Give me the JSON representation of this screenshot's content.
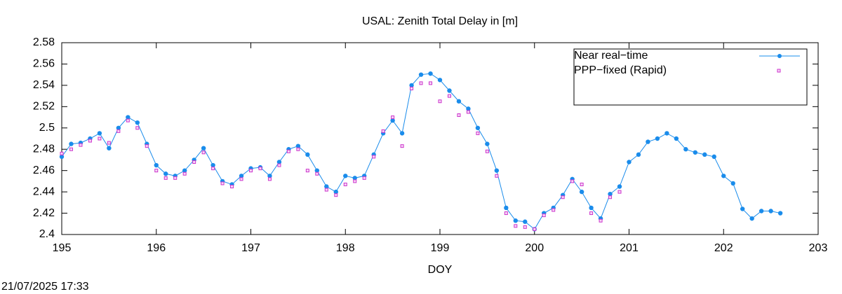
{
  "chart_data": {
    "type": "line",
    "title": "USAL: Zenith Total Delay in [m]",
    "xlabel": "DOY",
    "timestamp": "21/07/2025 17:33",
    "xlim": [
      195,
      203
    ],
    "xticks": [
      195,
      196,
      197,
      198,
      199,
      200,
      201,
      202,
      203
    ],
    "ylim": [
      2.4,
      2.58
    ],
    "yticks": [
      2.4,
      2.42,
      2.44,
      2.46,
      2.48,
      2.5,
      2.52,
      2.54,
      2.56,
      2.58
    ],
    "legend": "top-right",
    "series": [
      {
        "name": "Near real−time",
        "color": "#1a8ceb",
        "marker": "circle",
        "x": [
          195.0,
          195.1,
          195.2,
          195.3,
          195.4,
          195.5,
          195.6,
          195.7,
          195.8,
          195.9,
          196.0,
          196.1,
          196.2,
          196.3,
          196.4,
          196.5,
          196.6,
          196.7,
          196.8,
          196.9,
          197.0,
          197.1,
          197.2,
          197.3,
          197.4,
          197.5,
          197.6,
          197.7,
          197.8,
          197.9,
          198.0,
          198.1,
          198.2,
          198.3,
          198.4,
          198.5,
          198.6,
          198.7,
          198.8,
          198.9,
          199.0,
          199.1,
          199.2,
          199.3,
          199.4,
          199.5,
          199.6,
          199.7,
          199.8,
          199.9,
          200.0,
          200.1,
          200.2,
          200.3,
          200.4,
          200.5,
          200.6,
          200.7,
          200.8,
          200.9,
          201.0,
          201.1,
          201.2,
          201.3,
          201.4,
          201.5,
          201.6,
          201.7,
          201.8,
          201.9,
          202.0,
          202.1,
          202.2,
          202.3,
          202.4,
          202.5,
          202.6
        ],
        "values": [
          2.473,
          2.485,
          2.486,
          2.49,
          2.495,
          2.481,
          2.5,
          2.51,
          2.505,
          2.485,
          2.465,
          2.457,
          2.455,
          2.46,
          2.47,
          2.481,
          2.465,
          2.45,
          2.447,
          2.455,
          2.462,
          2.463,
          2.455,
          2.468,
          2.48,
          2.483,
          2.475,
          2.46,
          2.445,
          2.44,
          2.455,
          2.453,
          2.455,
          2.475,
          2.495,
          2.507,
          2.495,
          2.54,
          2.55,
          2.551,
          2.545,
          2.535,
          2.525,
          2.518,
          2.5,
          2.485,
          2.46,
          2.425,
          2.413,
          2.412,
          2.405,
          2.42,
          2.425,
          2.437,
          2.452,
          2.44,
          2.425,
          2.415,
          2.438,
          2.445,
          2.468,
          2.475,
          2.487,
          2.49,
          2.495,
          2.49,
          2.48,
          2.477,
          2.475,
          2.473,
          2.455,
          2.448,
          2.424,
          2.415,
          2.422,
          2.422,
          2.42
        ]
      },
      {
        "name": "PPP−fixed (Rapid)",
        "color": "#cc33cc",
        "marker": "square",
        "x": [
          195.0,
          195.1,
          195.2,
          195.3,
          195.4,
          195.5,
          195.6,
          195.7,
          195.8,
          195.9,
          196.0,
          196.1,
          196.2,
          196.3,
          196.4,
          196.5,
          196.6,
          196.7,
          196.8,
          196.9,
          197.0,
          197.1,
          197.2,
          197.3,
          197.4,
          197.5,
          197.6,
          197.7,
          197.8,
          197.9,
          198.0,
          198.1,
          198.2,
          198.3,
          198.4,
          198.5,
          198.6,
          198.7,
          198.8,
          198.9,
          199.0,
          199.1,
          199.2,
          199.3,
          199.4,
          199.5,
          199.6,
          199.7,
          199.8,
          199.9,
          200.0,
          200.1,
          200.2,
          200.3,
          200.4,
          200.5,
          200.6,
          200.7,
          200.8,
          200.9
        ],
        "values": [
          2.476,
          2.48,
          2.484,
          2.488,
          2.49,
          2.486,
          2.497,
          2.507,
          2.5,
          2.483,
          2.46,
          2.453,
          2.453,
          2.457,
          2.468,
          2.477,
          2.462,
          2.448,
          2.445,
          2.452,
          2.46,
          2.462,
          2.452,
          2.465,
          2.478,
          2.48,
          2.46,
          2.457,
          2.442,
          2.437,
          2.447,
          2.45,
          2.453,
          2.473,
          2.497,
          2.51,
          2.483,
          2.537,
          2.542,
          2.542,
          2.525,
          2.53,
          2.512,
          2.515,
          2.495,
          2.478,
          2.455,
          2.42,
          2.408,
          2.407,
          2.405,
          2.418,
          2.423,
          2.435,
          2.45,
          2.447,
          2.42,
          2.413,
          2.435,
          2.44
        ]
      }
    ]
  }
}
